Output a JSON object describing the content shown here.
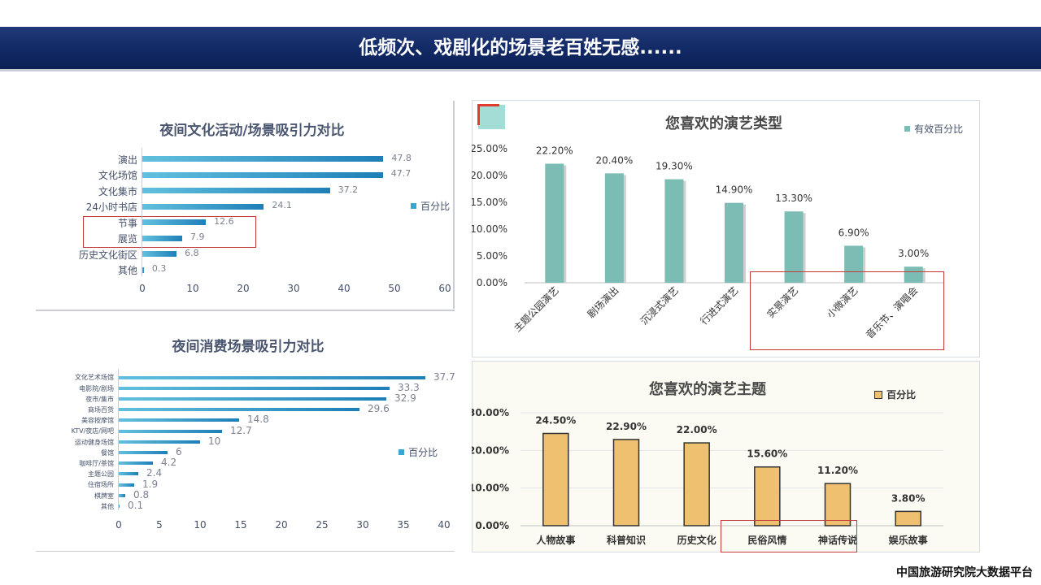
{
  "header": {
    "title": "低频次、戏剧化的场景老百姓无感......"
  },
  "footer": {
    "source": "中国旅游研究院大数据平台"
  },
  "colors": {
    "header_bg": "#122a66",
    "hbar": "#3aa6cf",
    "teal_bar": "#7bbdb5",
    "orange_bar": "#efc070",
    "highlight": "#c23a3a"
  },
  "chart_data": [
    {
      "type": "bar",
      "orientation": "horizontal",
      "title": "夜间文化活动/场景吸引力对比",
      "categories": [
        "演出",
        "文化场馆",
        "文化集市",
        "24小时书店",
        "节事",
        "展览",
        "历史文化街区",
        "其他"
      ],
      "series": [
        {
          "name": "百分比",
          "values": [
            47.8,
            47.7,
            37.2,
            24.1,
            12.6,
            7.9,
            6.8,
            0.3
          ]
        }
      ],
      "xticks": [
        "0",
        "10",
        "20",
        "30",
        "40",
        "50",
        "60"
      ],
      "xlim": [
        0,
        60
      ],
      "legend_position": "right"
    },
    {
      "type": "bar",
      "orientation": "horizontal",
      "title": "夜间消费场景吸引力对比",
      "categories": [
        "文化艺术场馆",
        "电影院/剧场",
        "夜市/集市",
        "商场百货",
        "美容按摩馆",
        "KTV/夜店/网吧",
        "运动健身场馆",
        "餐馆",
        "咖啡厅/茶馆",
        "主题公园",
        "住宿场所",
        "棋牌室",
        "其他"
      ],
      "series": [
        {
          "name": "百分比",
          "values": [
            37.7,
            33.3,
            32.9,
            29.6,
            14.8,
            12.7,
            10,
            6,
            4.2,
            2.4,
            1.9,
            0.8,
            0.1
          ]
        }
      ],
      "xticks": [
        "0",
        "5",
        "10",
        "15",
        "20",
        "25",
        "30",
        "35",
        "40"
      ],
      "xlim": [
        0,
        40
      ],
      "legend_position": "right"
    },
    {
      "type": "bar",
      "title": "您喜欢的演艺类型",
      "categories": [
        "主题公园演艺",
        "剧场演出",
        "沉浸式演艺",
        "行进式演艺",
        "实景演艺",
        "小微演艺",
        "音乐节、演唱会"
      ],
      "series": [
        {
          "name": "有效百分比",
          "values": [
            22.2,
            20.4,
            19.3,
            14.9,
            13.3,
            6.9,
            3.0
          ],
          "value_labels": [
            "22.20%",
            "20.40%",
            "19.30%",
            "14.90%",
            "13.30%",
            "6.90%",
            "3.00%"
          ]
        }
      ],
      "yticks": [
        "0.00%",
        "5.00%",
        "10.00%",
        "15.00%",
        "20.00%",
        "25.00%"
      ],
      "ylim": [
        0,
        25
      ],
      "legend_position": "top-right"
    },
    {
      "type": "bar",
      "title": "您喜欢的演艺主题",
      "categories": [
        "人物故事",
        "科普知识",
        "历史文化",
        "民俗风情",
        "神话传说",
        "娱乐故事"
      ],
      "series": [
        {
          "name": "百分比",
          "values": [
            24.5,
            22.9,
            22.0,
            15.6,
            11.2,
            3.8
          ],
          "value_labels": [
            "24.50%",
            "22.90%",
            "22.00%",
            "15.60%",
            "11.20%",
            "3.80%"
          ]
        }
      ],
      "yticks": [
        "0.00%",
        "10.00%",
        "20.00%",
        "30.00%"
      ],
      "ylim": [
        0,
        30
      ],
      "legend_position": "top-right"
    }
  ]
}
